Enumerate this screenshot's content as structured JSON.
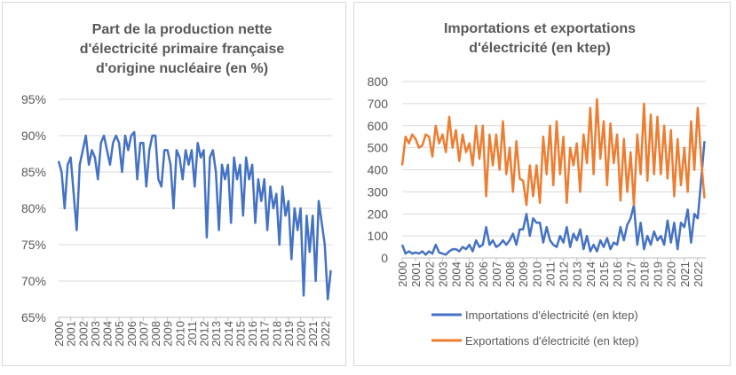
{
  "chart_data": [
    {
      "type": "line",
      "title": [
        "Part de la production nette",
        "d'électricité primaire française",
        "d'origine nucléaire (en %)"
      ],
      "x": [
        2000,
        2000.25,
        2000.5,
        2000.75,
        2001,
        2001.25,
        2001.5,
        2001.75,
        2002,
        2002.25,
        2002.5,
        2002.75,
        2003,
        2003.25,
        2003.5,
        2003.75,
        2004,
        2004.25,
        2004.5,
        2004.75,
        2005,
        2005.25,
        2005.5,
        2005.75,
        2006,
        2006.25,
        2006.5,
        2006.75,
        2007,
        2007.25,
        2007.5,
        2007.75,
        2008,
        2008.25,
        2008.5,
        2008.75,
        2009,
        2009.25,
        2009.5,
        2009.75,
        2010,
        2010.25,
        2010.5,
        2010.75,
        2011,
        2011.25,
        2011.5,
        2011.75,
        2012,
        2012.25,
        2012.5,
        2012.75,
        2013,
        2013.25,
        2013.5,
        2013.75,
        2014,
        2014.25,
        2014.5,
        2014.75,
        2015,
        2015.25,
        2015.5,
        2015.75,
        2016,
        2016.25,
        2016.5,
        2016.75,
        2017,
        2017.25,
        2017.5,
        2017.75,
        2018,
        2018.25,
        2018.5,
        2018.75,
        2019,
        2019.25,
        2019.5,
        2019.75,
        2020,
        2020.25,
        2020.5,
        2020.75,
        2021,
        2021.25,
        2021.5,
        2021.75,
        2022,
        2022.25,
        2022.5
      ],
      "values": [
        86.5,
        85,
        80,
        86,
        87,
        82,
        77,
        86,
        88,
        90,
        86,
        88,
        87,
        84,
        89,
        90,
        88,
        86,
        89,
        90,
        89,
        85,
        90,
        88,
        90,
        90.5,
        84,
        89,
        89,
        83,
        88,
        90,
        90,
        84,
        83,
        88,
        88,
        86,
        80,
        88,
        87,
        84,
        88,
        86,
        88,
        83,
        89,
        87,
        88,
        76,
        87,
        88,
        85,
        77,
        86,
        84,
        86,
        78,
        87,
        84,
        86,
        79,
        87,
        84,
        86,
        78,
        84,
        81,
        84,
        77,
        83,
        80,
        82,
        75,
        83,
        79,
        81,
        73,
        80,
        77,
        80,
        68,
        79,
        74,
        79,
        70,
        81,
        78,
        75,
        67.5,
        71.5
      ],
      "color": "#4472c4",
      "xlim": [
        2000,
        2022.6
      ],
      "xticks": [
        2000,
        2001,
        2002,
        2003,
        2004,
        2005,
        2006,
        2007,
        2008,
        2009,
        2010,
        2011,
        2012,
        2013,
        2014,
        2015,
        2016,
        2017,
        2018,
        2019,
        2020,
        2021,
        2022
      ],
      "ylim": [
        65,
        95
      ],
      "yticks": [
        {
          "value": 65,
          "label": "65%"
        },
        {
          "value": 70,
          "label": "70%"
        },
        {
          "value": 75,
          "label": "75%"
        },
        {
          "value": 80,
          "label": "80%"
        },
        {
          "value": 85,
          "label": "85%"
        },
        {
          "value": 90,
          "label": "90%"
        },
        {
          "value": 95,
          "label": "95%"
        }
      ],
      "grid": true
    },
    {
      "type": "line",
      "title": [
        "Importations et exportations",
        "d'électricité (en ktep)"
      ],
      "x": [
        2000,
        2000.25,
        2000.5,
        2000.75,
        2001,
        2001.25,
        2001.5,
        2001.75,
        2002,
        2002.25,
        2002.5,
        2002.75,
        2003,
        2003.25,
        2003.5,
        2003.75,
        2004,
        2004.25,
        2004.5,
        2004.75,
        2005,
        2005.25,
        2005.5,
        2005.75,
        2006,
        2006.25,
        2006.5,
        2006.75,
        2007,
        2007.25,
        2007.5,
        2007.75,
        2008,
        2008.25,
        2008.5,
        2008.75,
        2009,
        2009.25,
        2009.5,
        2009.75,
        2010,
        2010.25,
        2010.5,
        2010.75,
        2011,
        2011.25,
        2011.5,
        2011.75,
        2012,
        2012.25,
        2012.5,
        2012.75,
        2013,
        2013.25,
        2013.5,
        2013.75,
        2014,
        2014.25,
        2014.5,
        2014.75,
        2015,
        2015.25,
        2015.5,
        2015.75,
        2016,
        2016.25,
        2016.5,
        2016.75,
        2017,
        2017.25,
        2017.5,
        2017.75,
        2018,
        2018.25,
        2018.5,
        2018.75,
        2019,
        2019.25,
        2019.5,
        2019.75,
        2020,
        2020.25,
        2020.5,
        2020.75,
        2021,
        2021.25,
        2021.5,
        2021.75,
        2022,
        2022.25,
        2022.5
      ],
      "series": [
        {
          "name": "Importations d'électricité (en ktep)",
          "color": "#4472c4",
          "values": [
            60,
            20,
            30,
            20,
            25,
            20,
            30,
            15,
            30,
            20,
            60,
            25,
            20,
            15,
            30,
            40,
            40,
            30,
            50,
            40,
            60,
            30,
            80,
            50,
            60,
            140,
            60,
            80,
            50,
            60,
            80,
            60,
            80,
            110,
            60,
            130,
            130,
            200,
            100,
            180,
            160,
            160,
            70,
            140,
            80,
            60,
            50,
            100,
            70,
            140,
            50,
            110,
            80,
            130,
            40,
            100,
            30,
            60,
            30,
            80,
            50,
            90,
            40,
            70,
            60,
            140,
            80,
            150,
            180,
            240,
            60,
            160,
            40,
            100,
            60,
            120,
            80,
            100,
            60,
            170,
            70,
            160,
            40,
            160,
            140,
            220,
            70,
            200,
            180,
            350,
            530
          ]
        },
        {
          "name": "Exportations d'électricité (en ktep)",
          "color": "#ed7d31",
          "values": [
            420,
            550,
            520,
            560,
            540,
            500,
            510,
            560,
            550,
            460,
            600,
            520,
            560,
            480,
            640,
            500,
            580,
            440,
            560,
            480,
            520,
            420,
            600,
            450,
            600,
            280,
            560,
            420,
            560,
            400,
            620,
            380,
            500,
            300,
            530,
            360,
            350,
            240,
            420,
            280,
            420,
            250,
            550,
            380,
            600,
            330,
            620,
            380,
            550,
            250,
            500,
            420,
            520,
            300,
            560,
            430,
            680,
            380,
            720,
            450,
            620,
            330,
            610,
            430,
            560,
            260,
            540,
            300,
            480,
            240,
            560,
            380,
            700,
            350,
            650,
            380,
            640,
            380,
            600,
            360,
            580,
            280,
            540,
            330,
            500,
            300,
            620,
            400,
            680,
            450,
            270
          ]
        }
      ],
      "xlim": [
        2000,
        2022.6
      ],
      "xticks": [
        2000,
        2001,
        2002,
        2003,
        2004,
        2005,
        2006,
        2007,
        2008,
        2009,
        2010,
        2011,
        2012,
        2013,
        2014,
        2015,
        2016,
        2017,
        2018,
        2019,
        2020,
        2021,
        2022
      ],
      "ylim": [
        0,
        800
      ],
      "yticks": [
        0,
        100,
        200,
        300,
        400,
        500,
        600,
        700,
        800
      ],
      "grid": true,
      "legend": "bottom"
    }
  ]
}
